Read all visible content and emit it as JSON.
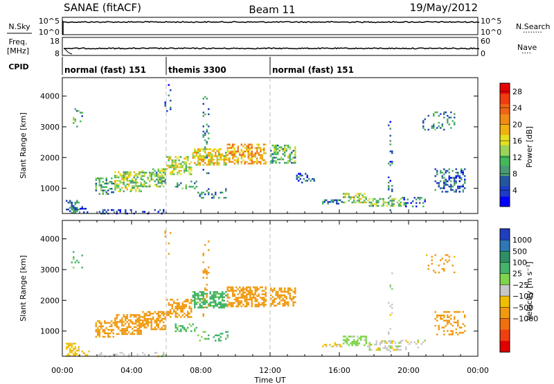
{
  "header": {
    "left": "SANAE (fitACF)",
    "center": "Beam 11",
    "right": "19/May/2012"
  },
  "nsky_panel": {
    "label": "N.Sky",
    "left_ticks": [
      "10^5",
      "10^0"
    ],
    "right_ticks": [
      "10^5",
      "10^0"
    ],
    "right_label": "N.Search",
    "right_label_marker": "········"
  },
  "freq_panel": {
    "label_top": "Freq.",
    "label_unit": "[MHz]",
    "left_ticks": [
      "18",
      "8"
    ],
    "right_ticks": [
      "60",
      "0"
    ],
    "right_label": "Nave",
    "right_label_marker": "····"
  },
  "cpid": {
    "label": "CPID",
    "segments": [
      {
        "start": 0.0,
        "end": 6.0,
        "label": "normal (fast) 151"
      },
      {
        "start": 6.0,
        "end": 12.0,
        "label": "themis 3300"
      },
      {
        "start": 12.0,
        "end": 24.0,
        "label": "normal (fast) 151"
      }
    ]
  },
  "chart_data": [
    {
      "type": "heatmap",
      "name": "power",
      "ylabel": "Slant Range [km]",
      "xlabel": "Time UT",
      "xlim": [
        0,
        24
      ],
      "ylim": [
        180,
        4600
      ],
      "yticks": [
        "1000",
        "2000",
        "3000",
        "4000"
      ],
      "xticks": [
        "00:00",
        "04:00",
        "08:00",
        "12:00",
        "16:00",
        "20:00",
        "00:00"
      ],
      "colorbar": {
        "label": "Power [dB]",
        "ticks": [
          "4",
          "8",
          "12",
          "16",
          "20",
          "24",
          "28"
        ],
        "range": [
          0,
          30
        ],
        "colors": [
          "#0000ff",
          "#1e3cc8",
          "#2355a0",
          "#4a9a73",
          "#44b95a",
          "#9ed35a",
          "#e6e020",
          "#f0b010",
          "#f08c14",
          "#f06414",
          "#f03c10",
          "#e80000"
        ]
      },
      "regions": [
        {
          "t0": 0.2,
          "t1": 1.0,
          "r0": 200,
          "r1": 620,
          "value": 7,
          "density": 0.55
        },
        {
          "t0": 1.0,
          "t1": 1.6,
          "r0": 230,
          "r1": 420,
          "value": 5,
          "density": 0.25
        },
        {
          "t0": 2.0,
          "t1": 5.9,
          "r0": 200,
          "r1": 320,
          "value": 5,
          "density": 0.2
        },
        {
          "t0": 1.9,
          "t1": 3.0,
          "r0": 820,
          "r1": 1350,
          "value": 10,
          "density": 0.5
        },
        {
          "t0": 3.0,
          "t1": 4.6,
          "r0": 900,
          "r1": 1550,
          "value": 14,
          "density": 0.55
        },
        {
          "t0": 4.6,
          "t1": 6.0,
          "r0": 1050,
          "r1": 1650,
          "value": 12,
          "density": 0.55
        },
        {
          "t0": 6.0,
          "t1": 7.5,
          "r0": 1450,
          "r1": 2050,
          "value": 15,
          "density": 0.55
        },
        {
          "t0": 7.5,
          "t1": 9.5,
          "r0": 1750,
          "r1": 2300,
          "value": 17,
          "density": 0.6
        },
        {
          "t0": 9.5,
          "t1": 11.8,
          "r0": 1800,
          "r1": 2450,
          "value": 19,
          "density": 0.6
        },
        {
          "t0": 6.5,
          "t1": 7.8,
          "r0": 1000,
          "r1": 1250,
          "value": 9,
          "density": 0.3
        },
        {
          "t0": 7.8,
          "t1": 9.6,
          "r0": 700,
          "r1": 1000,
          "value": 7,
          "density": 0.25
        },
        {
          "t0": 12.0,
          "t1": 13.5,
          "r0": 1850,
          "r1": 2420,
          "value": 11,
          "density": 0.5
        },
        {
          "t0": 13.5,
          "t1": 14.6,
          "r0": 1200,
          "r1": 1500,
          "value": 6,
          "density": 0.25
        },
        {
          "t0": 15.0,
          "t1": 16.2,
          "r0": 480,
          "r1": 640,
          "value": 7,
          "density": 0.4
        },
        {
          "t0": 16.2,
          "t1": 17.6,
          "r0": 560,
          "r1": 850,
          "value": 14,
          "density": 0.55
        },
        {
          "t0": 17.6,
          "t1": 19.6,
          "r0": 400,
          "r1": 680,
          "value": 12,
          "density": 0.55
        },
        {
          "t0": 19.6,
          "t1": 21.0,
          "r0": 400,
          "r1": 720,
          "value": 6,
          "density": 0.3
        },
        {
          "t0": 21.5,
          "t1": 23.3,
          "r0": 900,
          "r1": 1650,
          "value": 6,
          "density": 0.35
        },
        {
          "t0": 20.8,
          "t1": 22.6,
          "r0": 2900,
          "r1": 3500,
          "value": 8,
          "density": 0.2
        },
        {
          "t0": 0.5,
          "t1": 1.3,
          "r0": 3000,
          "r1": 3600,
          "value": 9,
          "density": 0.1
        },
        {
          "t0": 8.1,
          "t1": 8.5,
          "r0": 1500,
          "r1": 4000,
          "value": 8,
          "density": 0.15
        },
        {
          "t0": 5.9,
          "t1": 6.2,
          "r0": 3500,
          "r1": 4500,
          "value": 6,
          "density": 0.15
        },
        {
          "t0": 18.8,
          "t1": 19.1,
          "r0": 300,
          "r1": 3300,
          "value": 6,
          "density": 0.12
        }
      ]
    },
    {
      "type": "heatmap",
      "name": "velocity",
      "ylabel": "Slant Range [km]",
      "xlabel": "Time UT",
      "xlim": [
        0,
        24
      ],
      "ylim": [
        180,
        4600
      ],
      "yticks": [
        "1000",
        "2000",
        "3000",
        "4000"
      ],
      "xticks": [
        "00:00",
        "04:00",
        "08:00",
        "12:00",
        "16:00",
        "20:00",
        "00:00"
      ],
      "colorbar": {
        "label": "Velocity [m s⁻¹]",
        "ticks": [
          "1000",
          "500",
          "100",
          "25",
          "-25",
          "-100",
          "-500",
          "-1000"
        ],
        "levels": [
          1200,
          1000,
          500,
          100,
          25,
          -25,
          -100,
          -500,
          -1000,
          -1200
        ],
        "colors": [
          "#1f3fbf",
          "#2e78b8",
          "#2e8f66",
          "#45b46a",
          "#7ed44a",
          "#c8c8c8",
          "#f0c000",
          "#f09a10",
          "#f07010",
          "#f04010",
          "#e00000"
        ]
      },
      "regions": [
        {
          "t0": 0.2,
          "t1": 1.0,
          "r0": 200,
          "r1": 620,
          "value": -60,
          "density": 0.55
        },
        {
          "t0": 1.0,
          "t1": 1.6,
          "r0": 230,
          "r1": 420,
          "value": -80,
          "density": 0.25
        },
        {
          "t0": 2.0,
          "t1": 5.9,
          "r0": 200,
          "r1": 320,
          "value": 0,
          "density": 0.15
        },
        {
          "t0": 1.9,
          "t1": 3.0,
          "r0": 820,
          "r1": 1350,
          "value": -200,
          "density": 0.5
        },
        {
          "t0": 3.0,
          "t1": 4.6,
          "r0": 900,
          "r1": 1550,
          "value": -300,
          "density": 0.55
        },
        {
          "t0": 4.6,
          "t1": 6.0,
          "r0": 1050,
          "r1": 1650,
          "value": -250,
          "density": 0.55
        },
        {
          "t0": 6.0,
          "t1": 7.5,
          "r0": 1450,
          "r1": 2050,
          "value": -300,
          "density": 0.55
        },
        {
          "t0": 7.5,
          "t1": 9.5,
          "r0": 1750,
          "r1": 2300,
          "value": 200,
          "density": 0.6
        },
        {
          "t0": 9.5,
          "t1": 11.8,
          "r0": 1800,
          "r1": 2450,
          "value": -300,
          "density": 0.6
        },
        {
          "t0": 6.5,
          "t1": 7.8,
          "r0": 1000,
          "r1": 1250,
          "value": 150,
          "density": 0.3
        },
        {
          "t0": 7.8,
          "t1": 9.6,
          "r0": 700,
          "r1": 1000,
          "value": 120,
          "density": 0.25
        },
        {
          "t0": 12.0,
          "t1": 13.5,
          "r0": 1850,
          "r1": 2420,
          "value": -300,
          "density": 0.5
        },
        {
          "t0": 15.0,
          "t1": 16.2,
          "r0": 480,
          "r1": 640,
          "value": -40,
          "density": 0.35
        },
        {
          "t0": 16.2,
          "t1": 17.6,
          "r0": 560,
          "r1": 850,
          "value": 60,
          "density": 0.55
        },
        {
          "t0": 17.6,
          "t1": 19.6,
          "r0": 400,
          "r1": 700,
          "value": 0,
          "density": 0.55
        },
        {
          "t0": 19.6,
          "t1": 21.0,
          "r0": 400,
          "r1": 720,
          "value": 0,
          "density": 0.25
        },
        {
          "t0": 21.5,
          "t1": 23.3,
          "r0": 900,
          "r1": 1650,
          "value": -300,
          "density": 0.3
        },
        {
          "t0": 20.8,
          "t1": 22.6,
          "r0": 2900,
          "r1": 3500,
          "value": -200,
          "density": 0.15
        },
        {
          "t0": 0.5,
          "t1": 1.3,
          "r0": 3000,
          "r1": 3600,
          "value": 200,
          "density": 0.08
        },
        {
          "t0": 8.1,
          "t1": 8.5,
          "r0": 1500,
          "r1": 4000,
          "value": -300,
          "density": 0.12
        },
        {
          "t0": 5.9,
          "t1": 6.2,
          "r0": 3500,
          "r1": 4500,
          "value": -300,
          "density": 0.12
        },
        {
          "t0": 18.8,
          "t1": 19.1,
          "r0": 300,
          "r1": 3300,
          "value": 0,
          "density": 0.1
        }
      ]
    }
  ]
}
